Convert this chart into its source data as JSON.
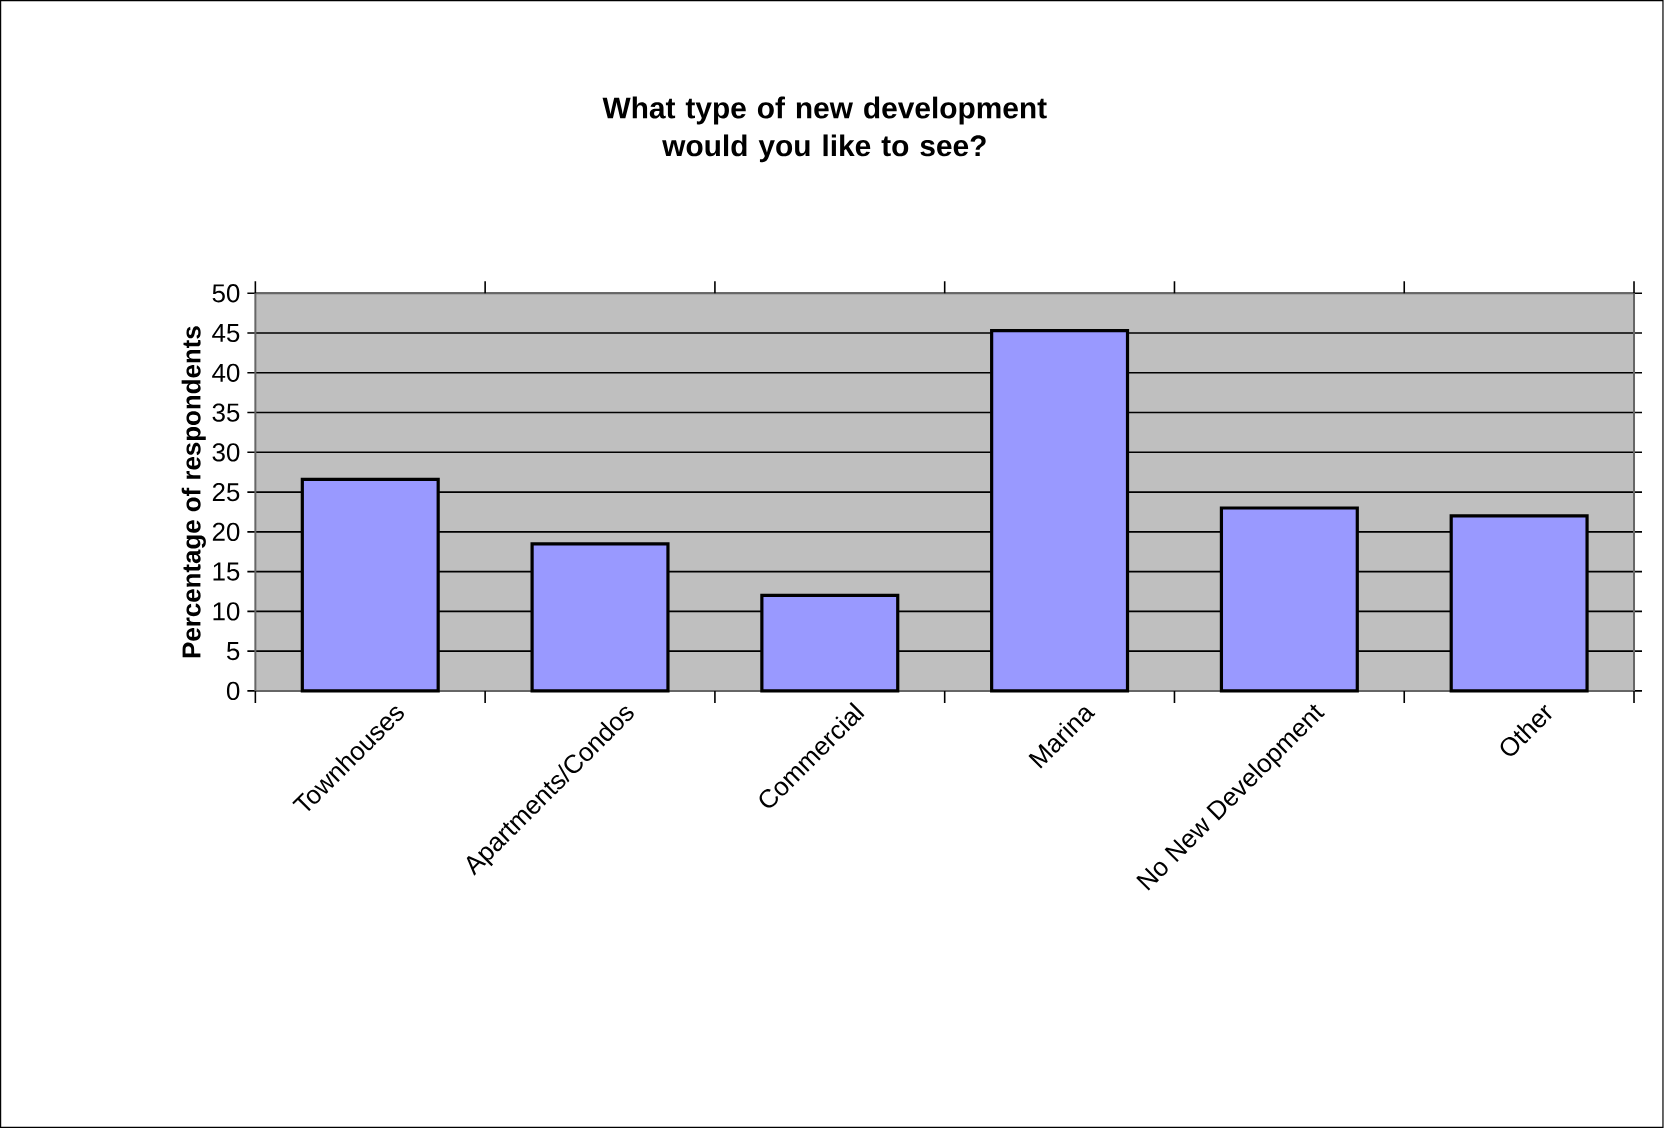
{
  "chart_data": {
    "type": "bar",
    "title": "What type of new development would you like to see?",
    "ylabel": "Percentage of respondents",
    "categories": [
      "Townhouses",
      "Apartments/Condos",
      "Commercial",
      "Marina",
      "No New Development",
      "Other"
    ],
    "values": [
      26.6,
      18.5,
      12,
      45.3,
      23,
      22
    ],
    "color": "#9999ff",
    "ylim": [
      0,
      50
    ],
    "yticks": [
      0,
      5,
      10,
      15,
      20,
      25,
      30,
      35,
      40,
      45,
      50
    ],
    "grid": "y"
  }
}
